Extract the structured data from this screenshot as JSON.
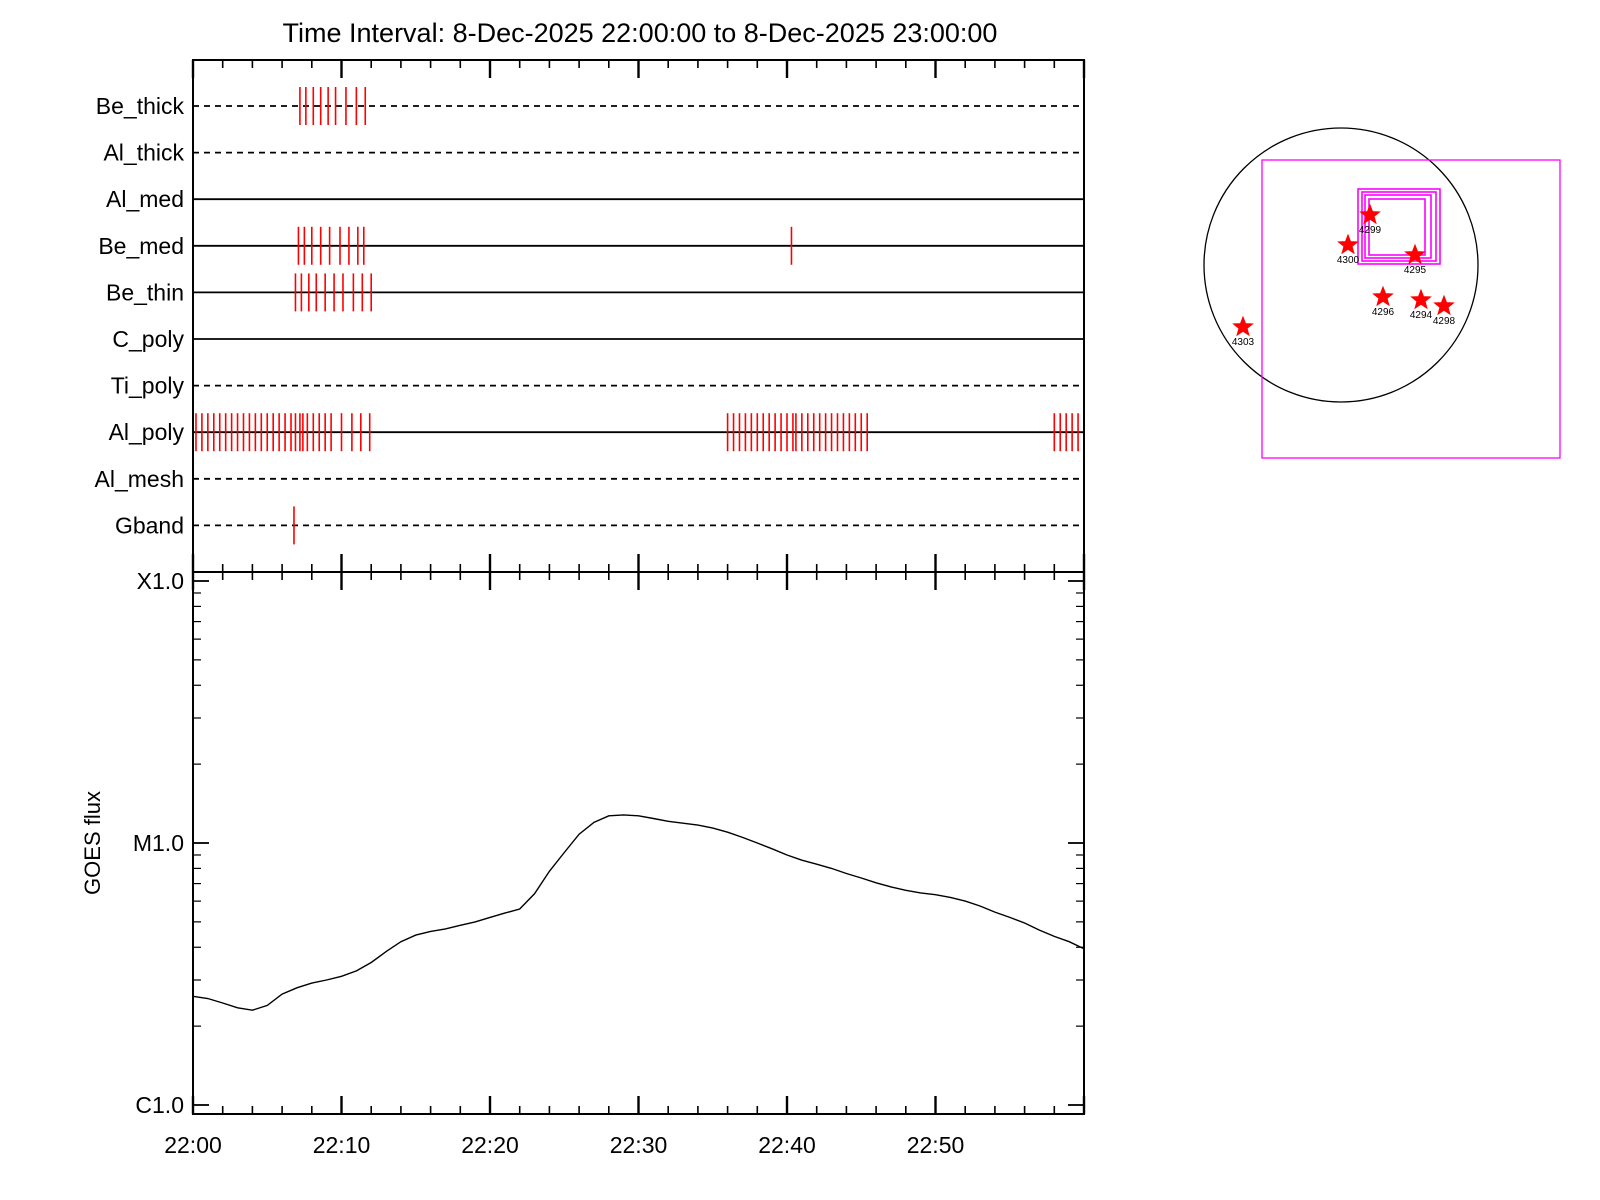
{
  "title": "Time Interval:  8-Dec-2025 22:00:00 to  8-Dec-2025 23:00:00",
  "chart_data": [
    {
      "type": "timeline",
      "subtitle": "",
      "x_unit": "minutes after 22:00",
      "xlim": [
        0,
        60
      ],
      "channels": [
        {
          "name": "Be_thick",
          "style": "dashed",
          "events": [
            7.2,
            7.6,
            8.1,
            8.6,
            9.1,
            9.6,
            10.3,
            11.0,
            11.6
          ]
        },
        {
          "name": "Al_thick",
          "style": "dashed",
          "events": []
        },
        {
          "name": "Al_med",
          "style": "solid",
          "events": []
        },
        {
          "name": "Be_med",
          "style": "solid",
          "events": [
            7.1,
            7.5,
            8.0,
            8.6,
            9.2,
            9.9,
            10.5,
            11.1,
            11.5,
            40.3
          ]
        },
        {
          "name": "Be_thin",
          "style": "solid",
          "events": [
            6.9,
            7.3,
            7.8,
            8.3,
            8.9,
            9.5,
            10.1,
            10.8,
            11.4,
            12.0
          ]
        },
        {
          "name": "C_poly",
          "style": "solid",
          "events": []
        },
        {
          "name": "Ti_poly",
          "style": "dashed",
          "events": []
        },
        {
          "name": "Al_poly",
          "style": "solid",
          "events": [
            0.2,
            0.6,
            1.0,
            1.4,
            1.8,
            2.2,
            2.6,
            3.0,
            3.4,
            3.8,
            4.2,
            4.6,
            5.0,
            5.4,
            5.8,
            6.2,
            6.6,
            6.9,
            7.2,
            7.4,
            7.7,
            8.1,
            8.5,
            8.9,
            9.3,
            10.0,
            10.7,
            11.3,
            11.9,
            36.0,
            36.4,
            36.8,
            37.2,
            37.6,
            38.0,
            38.4,
            38.8,
            39.2,
            39.6,
            40.0,
            40.4,
            40.6,
            41.0,
            41.4,
            41.8,
            42.2,
            42.6,
            43.0,
            43.4,
            43.8,
            44.2,
            44.6,
            45.0,
            45.4,
            58.0,
            58.4,
            58.8,
            59.2,
            59.6
          ]
        },
        {
          "name": "Al_mesh",
          "style": "dashed",
          "events": []
        },
        {
          "name": "Gband",
          "style": "dashed",
          "events": [
            6.8
          ]
        }
      ]
    },
    {
      "type": "line",
      "title": "",
      "xlabel": "",
      "ylabel": "GOES flux",
      "x_ticks": [
        "22:00",
        "22:10",
        "22:20",
        "22:30",
        "22:40",
        "22:50"
      ],
      "y_scale": "log",
      "ylim": [
        1e-06,
        0.0001
      ],
      "y_ticks": [
        {
          "label": "C1.0",
          "value": 1e-06
        },
        {
          "label": "M1.0",
          "value": 1e-05
        },
        {
          "label": "X1.0",
          "value": 0.0001
        }
      ],
      "series": [
        {
          "x": [
            0,
            1,
            2,
            3,
            4,
            5,
            6,
            7,
            8,
            9,
            10,
            11,
            12,
            13,
            14,
            15,
            16,
            17,
            18,
            19,
            20,
            21,
            22,
            23,
            24,
            25,
            26,
            27,
            28,
            29,
            30,
            31,
            32,
            33,
            34,
            35,
            36,
            37,
            38,
            39,
            40,
            41,
            42,
            43,
            44,
            45,
            46,
            47,
            48,
            49,
            50,
            51,
            52,
            53,
            54,
            55,
            56,
            57,
            58,
            59,
            60
          ],
          "y": [
            2.6e-06,
            2.55e-06,
            2.45e-06,
            2.35e-06,
            2.3e-06,
            2.4e-06,
            2.65e-06,
            2.8e-06,
            2.92e-06,
            3e-06,
            3.1e-06,
            3.25e-06,
            3.5e-06,
            3.85e-06,
            4.2e-06,
            4.45e-06,
            4.6e-06,
            4.7e-06,
            4.85e-06,
            5e-06,
            5.2e-06,
            5.4e-06,
            5.6e-06,
            6.4e-06,
            7.8e-06,
            9.2e-06,
            1.08e-05,
            1.2e-05,
            1.27e-05,
            1.28e-05,
            1.27e-05,
            1.24e-05,
            1.21e-05,
            1.19e-05,
            1.17e-05,
            1.14e-05,
            1.1e-05,
            1.05e-05,
            1e-05,
            9.5e-06,
            9e-06,
            8.6e-06,
            8.3e-06,
            8e-06,
            7.65e-06,
            7.35e-06,
            7.05e-06,
            6.8e-06,
            6.6e-06,
            6.45e-06,
            6.35e-06,
            6.2e-06,
            6e-06,
            5.75e-06,
            5.45e-06,
            5.2e-06,
            4.95e-06,
            4.65e-06,
            4.4e-06,
            4.2e-06,
            3.95e-06
          ]
        }
      ]
    },
    {
      "type": "solar_disk_map",
      "circle_color": "#000000",
      "fov_color": "#ff00ff",
      "marker_color": "#ff0000",
      "regions": [
        "4299",
        "4300",
        "4295",
        "4296",
        "4294",
        "4298",
        "4303"
      ]
    }
  ]
}
